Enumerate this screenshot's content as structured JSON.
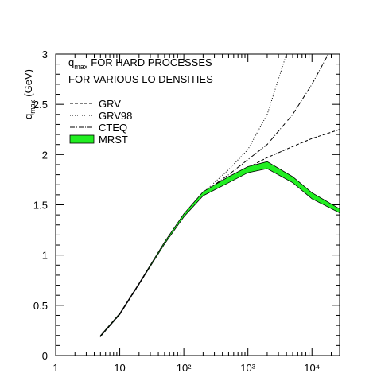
{
  "chart_data": {
    "type": "line",
    "title": {
      "symbol": "q",
      "subscript": "max",
      "text": "FOR HARD PROCESSES"
    },
    "subtitle": "FOR VARIOUS LO DENSITIES",
    "y_label": {
      "symbol": "q",
      "subscript": "max",
      "text": "(GeV)"
    },
    "x_log": true,
    "xlim": [
      1,
      27000
    ],
    "ylim": [
      0,
      3
    ],
    "xticks": [
      1,
      10,
      {
        "value": 100,
        "label": "10²"
      },
      {
        "value": 1000,
        "label": "10³"
      },
      {
        "value": 10000,
        "label": "10⁴"
      }
    ],
    "yticks": [
      0,
      0.5,
      1,
      1.5,
      2,
      2.5,
      3
    ],
    "legend": "top-left",
    "series": [
      {
        "name": "GRV",
        "style": "dashed",
        "color": "#000000",
        "x": [
          5,
          10,
          20,
          50,
          100,
          200,
          500,
          1000,
          2000,
          5000,
          10000,
          27000
        ],
        "values": [
          0.19,
          0.41,
          0.71,
          1.12,
          1.4,
          1.62,
          1.78,
          1.87,
          1.97,
          2.08,
          2.16,
          2.25
        ]
      },
      {
        "name": "GRV98",
        "style": "dotted",
        "color": "#000000",
        "x": [
          5,
          10,
          20,
          50,
          100,
          200,
          500,
          1000,
          2000,
          4000
        ],
        "values": [
          0.19,
          0.41,
          0.71,
          1.12,
          1.4,
          1.62,
          1.85,
          2.05,
          2.4,
          3.0
        ]
      },
      {
        "name": "CTEQ",
        "style": "dashdot",
        "color": "#000000",
        "x": [
          5,
          10,
          20,
          50,
          100,
          200,
          500,
          1000,
          2000,
          5000,
          10000,
          18000
        ],
        "values": [
          0.19,
          0.41,
          0.71,
          1.12,
          1.4,
          1.62,
          1.8,
          1.95,
          2.1,
          2.4,
          2.7,
          3.0
        ]
      },
      {
        "name": "MRST",
        "style": "band",
        "color": "#22ee22",
        "x": [
          5,
          10,
          20,
          50,
          100,
          200,
          500,
          1000,
          2000,
          5000,
          10000,
          27000
        ],
        "lower": [
          0.19,
          0.41,
          0.71,
          1.11,
          1.38,
          1.59,
          1.72,
          1.82,
          1.86,
          1.72,
          1.56,
          1.42
        ],
        "upper": [
          0.2,
          0.42,
          0.72,
          1.13,
          1.41,
          1.63,
          1.78,
          1.88,
          1.93,
          1.78,
          1.62,
          1.46
        ]
      }
    ]
  }
}
